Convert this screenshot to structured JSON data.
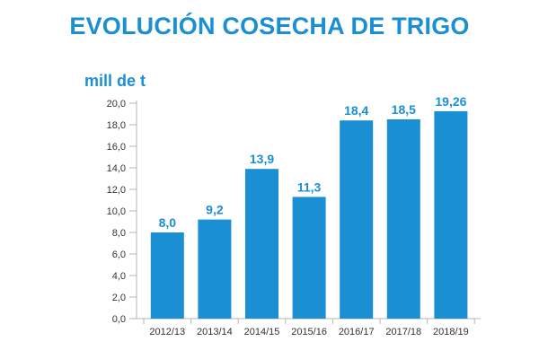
{
  "title": "EVOLUCIÓN COSECHA DE TRIGO",
  "chart_data": {
    "type": "bar",
    "title": "EVOLUCIÓN COSECHA DE TRIGO",
    "ylabel": "mill de t",
    "xlabel": "",
    "categories": [
      "2012/13",
      "2013/14",
      "2014/15",
      "2015/16",
      "2016/17",
      "2017/18",
      "2018/19"
    ],
    "values": [
      8.0,
      9.2,
      13.9,
      11.3,
      18.4,
      18.5,
      19.26
    ],
    "value_labels": [
      "8,0",
      "9,2",
      "13,9",
      "11,3",
      "18,4",
      "18,5",
      "19,26"
    ],
    "ylim": [
      0,
      20
    ],
    "yticks": [
      "0,0",
      "2,0",
      "4,0",
      "6,0",
      "8,0",
      "10,0",
      "12,0",
      "14,0",
      "16,0",
      "18,0",
      "20,0"
    ],
    "grid": false,
    "legend": "none",
    "bar_color": "#1a8fd4",
    "axis_color": "#b5b5b5"
  }
}
